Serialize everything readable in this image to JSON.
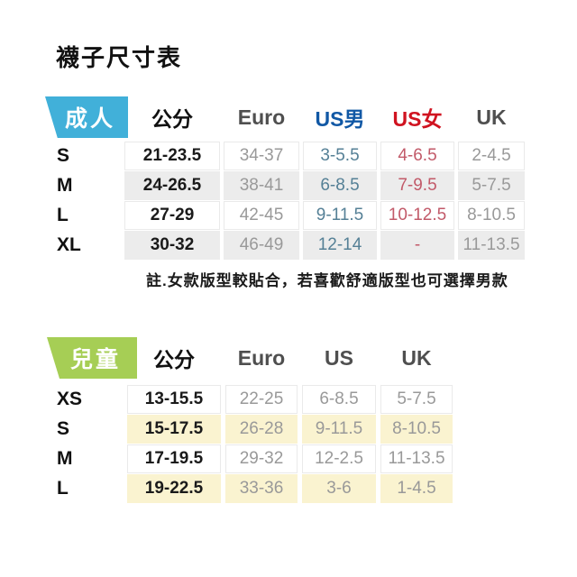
{
  "page": {
    "title": "襪子尺寸表",
    "note": "註.女款版型較貼合，若喜歡舒適版型也可選擇男款"
  },
  "colors": {
    "adult_tag_bg": "#41b0d9",
    "children_tag_bg": "#a6ce55",
    "header_text": "#4f4f4f",
    "header_cm_text": "#111111",
    "header_us_men_text": "#1158a5",
    "header_us_women_text": "#d01320",
    "value_text": "#999999",
    "value_cm_text": "#1a1a1a",
    "value_us_men_text": "#558096",
    "value_us_women_text": "#c25a69",
    "row_shade_gray": "#ececec",
    "row_shade_yellow": "#faf3d0",
    "cell_border": "#eaeaea"
  },
  "chart_data": [
    {
      "type": "table",
      "group_label": "成人",
      "columns": [
        "公分",
        "Euro",
        "US男",
        "US女",
        "UK"
      ],
      "rows": [
        {
          "label": "S",
          "values": [
            "21-23.5",
            "34-37",
            "3-5.5",
            "4-6.5",
            "2-4.5"
          ],
          "shaded": false
        },
        {
          "label": "M",
          "values": [
            "24-26.5",
            "38-41",
            "6-8.5",
            "7-9.5",
            "5-7.5"
          ],
          "shaded": true
        },
        {
          "label": "L",
          "values": [
            "27-29",
            "42-45",
            "9-11.5",
            "10-12.5",
            "8-10.5"
          ],
          "shaded": false
        },
        {
          "label": "XL",
          "values": [
            "30-32",
            "46-49",
            "12-14",
            "-",
            "11-13.5"
          ],
          "shaded": true
        }
      ],
      "shade_color": "#ececec"
    },
    {
      "type": "table",
      "group_label": "兒童",
      "columns": [
        "公分",
        "Euro",
        "US",
        "UK"
      ],
      "rows": [
        {
          "label": "XS",
          "values": [
            "13-15.5",
            "22-25",
            "6-8.5",
            "5-7.5"
          ],
          "shaded": false
        },
        {
          "label": "S",
          "values": [
            "15-17.5",
            "26-28",
            "9-11.5",
            "8-10.5"
          ],
          "shaded": true
        },
        {
          "label": "M",
          "values": [
            "17-19.5",
            "29-32",
            "12-2.5",
            "11-13.5"
          ],
          "shaded": false
        },
        {
          "label": "L",
          "values": [
            "19-22.5",
            "33-36",
            "3-6",
            "1-4.5"
          ],
          "shaded": true
        }
      ],
      "shade_color": "#faf3d0"
    }
  ]
}
